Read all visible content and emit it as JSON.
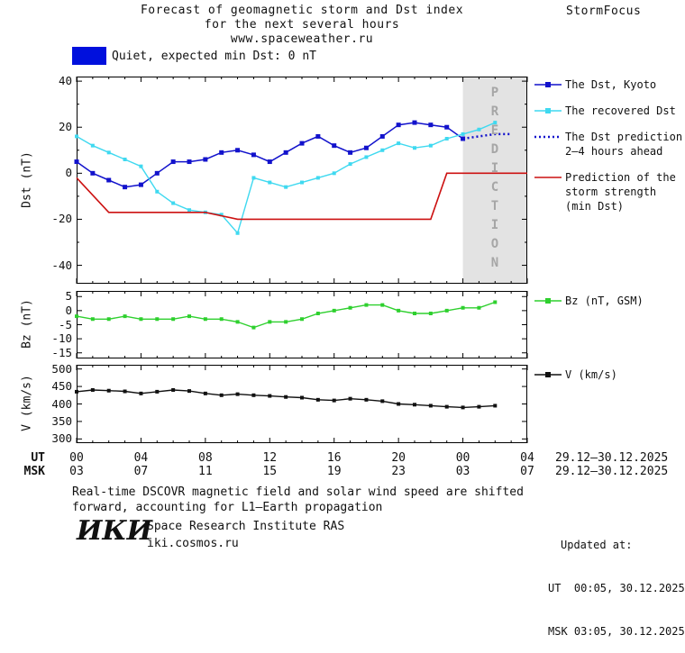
{
  "header": {
    "title_line1": "Forecast of geomagnetic storm and Dst index",
    "title_line2": "for the next several hours",
    "title_line3": "www.spaceweather.ru",
    "brand": "StormFocus"
  },
  "status": {
    "label": "Quiet, expected min Dst: 0 nT",
    "swatch_color": "#0010dd"
  },
  "chart_data": [
    {
      "type": "line",
      "id": "dst",
      "ylabel": "Dst (nT)",
      "ylim": [
        -48,
        42
      ],
      "yticks": [
        40,
        20,
        0,
        -20,
        -40
      ],
      "yticks_minor": [
        30,
        10,
        -10,
        -30
      ],
      "xlim": [
        0,
        28
      ],
      "band": {
        "start": 24,
        "end": 28,
        "color": "#e3e3e3",
        "label": "PREDICTION"
      },
      "series": [
        {
          "name": "The Dst, Kyoto",
          "color": "#1212cc",
          "marker": "square",
          "marker_size": 5,
          "width": 1.5,
          "x": [
            0,
            1,
            2,
            3,
            4,
            5,
            6,
            7,
            8,
            9,
            10,
            11,
            12,
            13,
            14,
            15,
            16,
            17,
            18,
            19,
            20,
            21,
            22,
            23,
            24
          ],
          "values": [
            5,
            0,
            -3,
            -6,
            -5,
            0,
            5,
            5,
            6,
            9,
            10,
            8,
            5,
            9,
            13,
            16,
            12,
            9,
            11,
            16,
            21,
            22,
            21,
            20,
            15
          ]
        },
        {
          "name": "The recovered Dst",
          "color": "#3fd9f0",
          "marker": "square",
          "marker_size": 4,
          "width": 1.4,
          "x": [
            0,
            1,
            2,
            3,
            4,
            5,
            6,
            7,
            8,
            9,
            10,
            11,
            12,
            13,
            14,
            15,
            16,
            17,
            18,
            19,
            20,
            21,
            22,
            23,
            24,
            25,
            26
          ],
          "values": [
            16,
            12,
            9,
            6,
            3,
            -8,
            -13,
            -16,
            -17,
            -18,
            -26,
            -2,
            -4,
            -6,
            -4,
            -2,
            0,
            4,
            7,
            10,
            13,
            11,
            12,
            15,
            17,
            19,
            22
          ]
        },
        {
          "name": "The Dst prediction 2–4 hours ahead",
          "color": "#1212cc",
          "style": "dotted",
          "marker": "none",
          "width": 2.5,
          "x": [
            24,
            25,
            26,
            27
          ],
          "values": [
            15,
            16,
            17,
            17
          ]
        },
        {
          "name": "Prediction of the storm strength (min Dst)",
          "color": "#cc1111",
          "marker": "none",
          "width": 1.6,
          "x": [
            0,
            2,
            8,
            10,
            22,
            23,
            28
          ],
          "values": [
            -2,
            -17,
            -17,
            -20,
            -20,
            0,
            0
          ]
        }
      ]
    },
    {
      "type": "line",
      "id": "bz",
      "ylabel": "Bz (nT)",
      "ylim": [
        -17,
        7
      ],
      "yticks": [
        5,
        0,
        -5,
        -10,
        -15
      ],
      "yticks_minor": [],
      "xlim": [
        0,
        28
      ],
      "series": [
        {
          "name": "Bz (nT, GSM)",
          "color": "#2ed02e",
          "marker": "square",
          "marker_size": 4,
          "width": 1.4,
          "x": [
            0,
            1,
            2,
            3,
            4,
            5,
            6,
            7,
            8,
            9,
            10,
            11,
            12,
            13,
            14,
            15,
            16,
            17,
            18,
            19,
            20,
            21,
            22,
            23,
            24,
            25,
            26
          ],
          "values": [
            -2,
            -3,
            -3,
            -2,
            -3,
            -3,
            -3,
            -2,
            -3,
            -3,
            -4,
            -6,
            -4,
            -4,
            -3,
            -1,
            0,
            1,
            2,
            2,
            0,
            -1,
            -1,
            0,
            1,
            1,
            3
          ]
        }
      ]
    },
    {
      "type": "line",
      "id": "v",
      "ylabel": "V (km/s)",
      "ylim": [
        288,
        512
      ],
      "yticks": [
        500,
        450,
        400,
        350,
        300
      ],
      "yticks_minor": [],
      "xlim": [
        0,
        28
      ],
      "series": [
        {
          "name": "V (km/s)",
          "color": "#111111",
          "marker": "square",
          "marker_size": 4,
          "width": 1.4,
          "x": [
            0,
            1,
            2,
            3,
            4,
            5,
            6,
            7,
            8,
            9,
            10,
            11,
            12,
            13,
            14,
            15,
            16,
            17,
            18,
            19,
            20,
            21,
            22,
            23,
            24,
            25,
            26
          ],
          "values": [
            435,
            440,
            438,
            436,
            430,
            435,
            440,
            437,
            430,
            425,
            428,
            425,
            423,
            420,
            418,
            412,
            410,
            415,
            412,
            408,
            400,
            398,
            395,
            392,
            390,
            392,
            395
          ]
        }
      ]
    }
  ],
  "legends": [
    {
      "chart": "dst",
      "items": [
        {
          "lines": [
            "The Dst, Kyoto"
          ],
          "color": "#1212cc",
          "marker": "square",
          "style": "solid"
        },
        {
          "lines": [
            "The recovered Dst"
          ],
          "color": "#3fd9f0",
          "marker": "square",
          "style": "solid"
        },
        {
          "lines": [
            "The Dst prediction",
            "2–4 hours ahead"
          ],
          "color": "#1212cc",
          "marker": "none",
          "style": "dotted"
        },
        {
          "lines": [
            "Prediction of the",
            "storm strength",
            "(min Dst)"
          ],
          "color": "#cc1111",
          "marker": "none",
          "style": "solid"
        }
      ]
    },
    {
      "chart": "bz",
      "items": [
        {
          "lines": [
            "Bz (nT, GSM)"
          ],
          "color": "#2ed02e",
          "marker": "square",
          "style": "solid"
        }
      ]
    },
    {
      "chart": "v",
      "items": [
        {
          "lines": [
            "V (km/s)"
          ],
          "color": "#111111",
          "marker": "square",
          "style": "solid"
        }
      ]
    }
  ],
  "xaxis": {
    "ut_label": "UT",
    "msk_label": "MSK",
    "ut_ticks": [
      "00",
      "04",
      "08",
      "12",
      "16",
      "20",
      "00",
      "04"
    ],
    "msk_ticks": [
      "03",
      "07",
      "11",
      "15",
      "19",
      "23",
      "03",
      "07"
    ],
    "ut_date": "29.12–30.12.2025",
    "msk_date": "29.12–30.12.2025"
  },
  "footer": {
    "note_line1": "Real-time DSCOVR magnetic field and solar wind speed are shifted",
    "note_line2": "forward, accounting for L1–Earth propagation",
    "logo_text": "ИКИ",
    "institute": "Space Research Institute RAS",
    "website": "iki.cosmos.ru",
    "updated_label": "Updated at:",
    "updated_ut": "UT  00:05, 30.12.2025",
    "updated_msk": "MSK 03:05, 30.12.2025"
  }
}
